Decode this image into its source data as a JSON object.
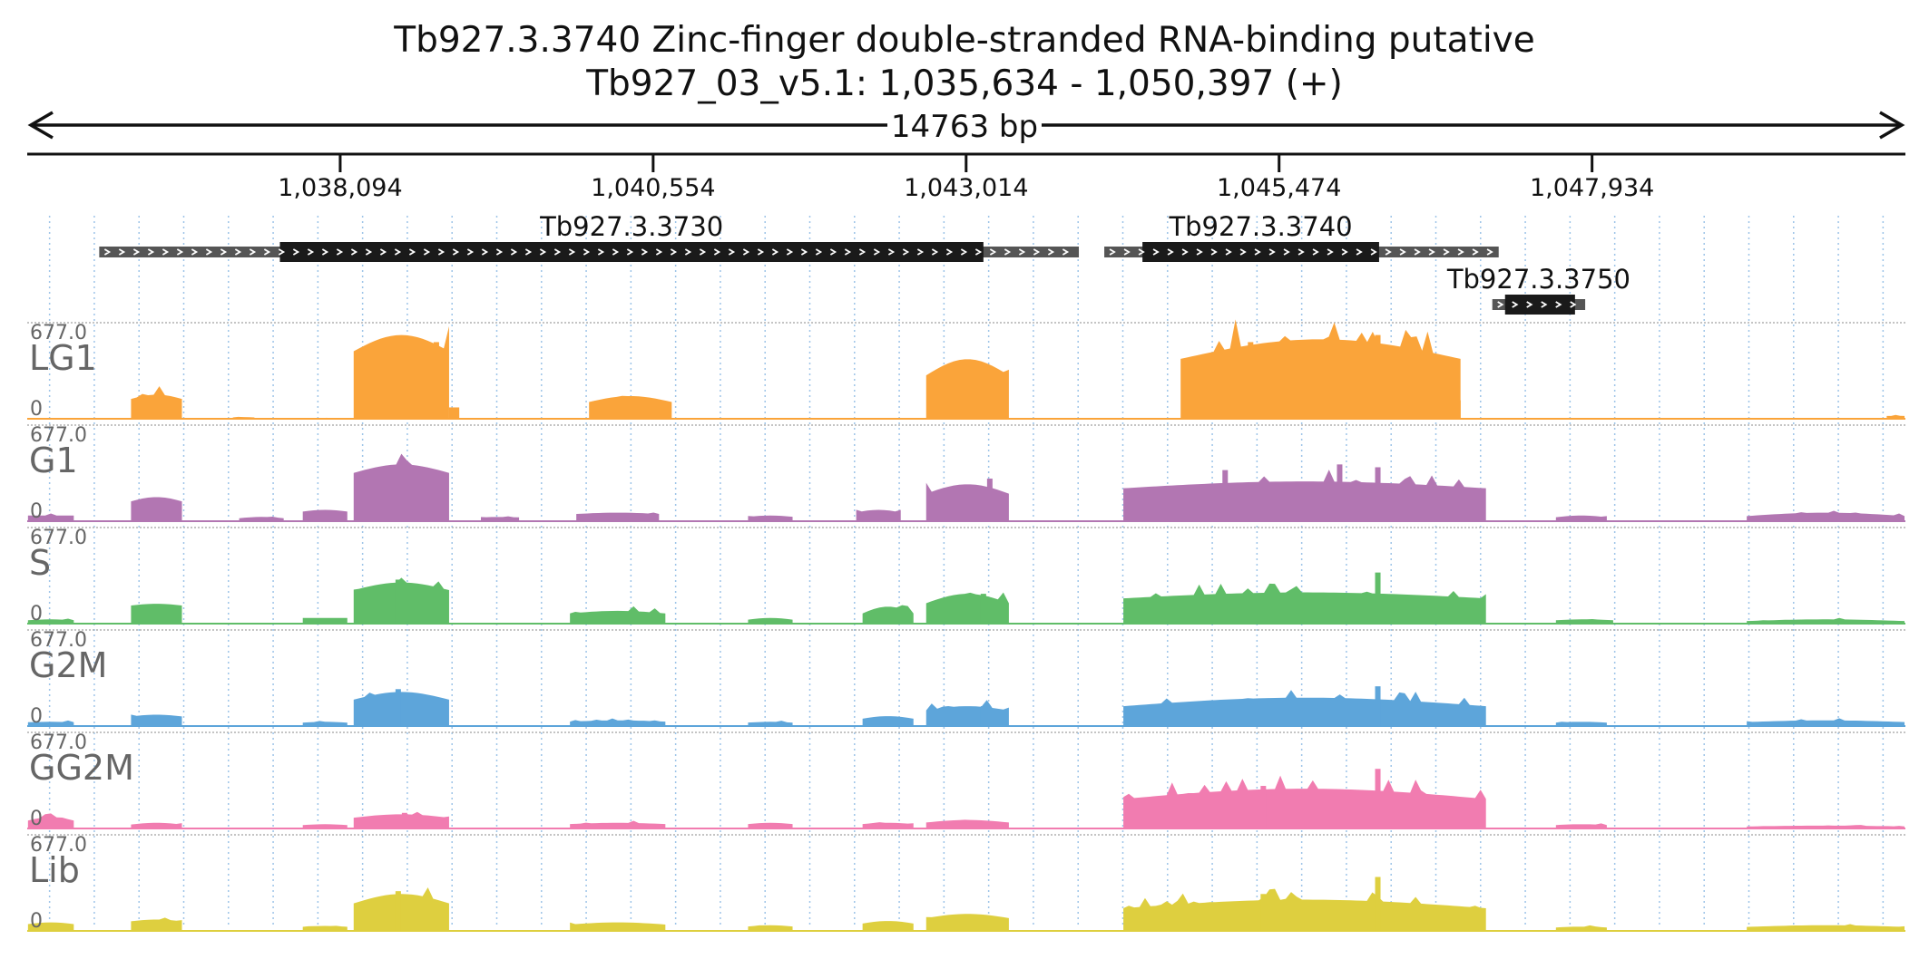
{
  "header": {
    "title": "Tb927.3.3740  Zinc-finger double-stranded RNA-binding  putative",
    "subtitle": "Tb927_03_v5.1: 1,035,634 - 1,050,397 (+)",
    "span_label": "14763 bp"
  },
  "chart_data": {
    "type": "area",
    "title": "Tb927.3.3740  Zinc-finger double-stranded RNA-binding  putative",
    "subtitle": "Tb927_03_v5.1: 1,035,634 - 1,050,397 (+)",
    "chromosome": "Tb927_03_v5.1",
    "strand": "+",
    "xlim": [
      1035634,
      1050397
    ],
    "span_label": "14763 bp",
    "x_ticks": [
      {
        "value": 1038094,
        "label": "1,038,094"
      },
      {
        "value": 1040554,
        "label": "1,040,554"
      },
      {
        "value": 1043014,
        "label": "1,043,014"
      },
      {
        "value": 1045474,
        "label": "1,045,474"
      },
      {
        "value": 1047934,
        "label": "1,047,934"
      }
    ],
    "grid": true,
    "genes": [
      {
        "name": "Tb927.3.3730",
        "utr_start": 1036200,
        "cds_start": 1037620,
        "cds_end": 1043150,
        "utr_end": 1043900
      },
      {
        "name": "Tb927.3.3740",
        "utr_start": 1044100,
        "cds_start": 1044400,
        "cds_end": 1046260,
        "utr_end": 1047200
      },
      {
        "name": "Tb927.3.3750",
        "utr_start": 1047150,
        "cds_start": 1047250,
        "cds_end": 1047800,
        "utr_end": 1047880
      }
    ],
    "ylim": [
      0,
      677.0
    ],
    "y_max_label": "677.0",
    "y_min_label": "0",
    "series": [
      {
        "name": "LG1",
        "color": "#faa43a",
        "regions": [
          [
            1036450,
            1036850,
            120,
            170
          ],
          [
            1037250,
            1037420,
            8,
            12
          ],
          [
            1037950,
            1038000,
            5,
            5
          ],
          [
            1038200,
            1038950,
            400,
            590
          ],
          [
            1038950,
            1039030,
            80,
            80
          ],
          [
            1040050,
            1040700,
            90,
            160
          ],
          [
            1042700,
            1043350,
            230,
            420
          ],
          [
            1044700,
            1046900,
            330,
            560
          ],
          [
            1050250,
            1050390,
            20,
            20
          ]
        ],
        "peaks": [
          [
            1038600,
            560
          ],
          [
            1038850,
            540
          ],
          [
            1043150,
            370
          ],
          [
            1045250,
            540
          ],
          [
            1046250,
            590
          ],
          [
            1046550,
            520
          ],
          [
            1046880,
            130
          ]
        ]
      },
      {
        "name": "G1",
        "color": "#b276b2",
        "regions": [
          [
            1035640,
            1036000,
            40,
            40
          ],
          [
            1036450,
            1036850,
            120,
            170
          ],
          [
            1037300,
            1037650,
            15,
            30
          ],
          [
            1037800,
            1038150,
            60,
            80
          ],
          [
            1038200,
            1038950,
            300,
            400
          ],
          [
            1039200,
            1039500,
            25,
            30
          ],
          [
            1039950,
            1040600,
            45,
            60
          ],
          [
            1041300,
            1041650,
            25,
            40
          ],
          [
            1042150,
            1042500,
            50,
            80
          ],
          [
            1042700,
            1043350,
            150,
            260
          ],
          [
            1044250,
            1047100,
            200,
            280
          ],
          [
            1047650,
            1048050,
            20,
            40
          ],
          [
            1049150,
            1050390,
            20,
            60
          ]
        ],
        "peaks": [
          [
            1038500,
            390
          ],
          [
            1038700,
            350
          ],
          [
            1043200,
            300
          ],
          [
            1045050,
            360
          ],
          [
            1045950,
            400
          ],
          [
            1046250,
            380
          ]
        ]
      },
      {
        "name": "S",
        "color": "#60bd68",
        "regions": [
          [
            1035640,
            1036000,
            20,
            30
          ],
          [
            1036450,
            1036850,
            120,
            140
          ],
          [
            1037800,
            1038150,
            40,
            40
          ],
          [
            1038200,
            1038950,
            200,
            290
          ],
          [
            1039900,
            1040650,
            60,
            90
          ],
          [
            1041300,
            1041650,
            20,
            40
          ],
          [
            1042200,
            1042600,
            40,
            120
          ],
          [
            1042700,
            1043350,
            100,
            210
          ],
          [
            1044250,
            1047100,
            150,
            220
          ],
          [
            1047650,
            1048100,
            20,
            30
          ],
          [
            1049150,
            1050390,
            10,
            30
          ]
        ],
        "peaks": [
          [
            1038550,
            310
          ],
          [
            1043150,
            210
          ],
          [
            1046250,
            360
          ]
        ]
      },
      {
        "name": "G2M",
        "color": "#5da5da",
        "regions": [
          [
            1035640,
            1036000,
            25,
            30
          ],
          [
            1036450,
            1036850,
            60,
            80
          ],
          [
            1037800,
            1038150,
            20,
            30
          ],
          [
            1038200,
            1038950,
            150,
            240
          ],
          [
            1039900,
            1040650,
            25,
            40
          ],
          [
            1041300,
            1041650,
            20,
            30
          ],
          [
            1042200,
            1042600,
            40,
            70
          ],
          [
            1042700,
            1043350,
            90,
            140
          ],
          [
            1044250,
            1047100,
            100,
            200
          ],
          [
            1047650,
            1048050,
            20,
            30
          ],
          [
            1049150,
            1050390,
            20,
            40
          ]
        ],
        "peaks": [
          [
            1038550,
            260
          ],
          [
            1043150,
            140
          ],
          [
            1046250,
            280
          ]
        ]
      },
      {
        "name": "GG2M",
        "color": "#f17cb0",
        "regions": [
          [
            1035640,
            1036000,
            40,
            80
          ],
          [
            1036450,
            1036850,
            20,
            40
          ],
          [
            1037800,
            1038150,
            20,
            30
          ],
          [
            1038200,
            1038950,
            60,
            100
          ],
          [
            1039900,
            1040650,
            25,
            40
          ],
          [
            1041300,
            1041650,
            25,
            40
          ],
          [
            1042200,
            1042600,
            25,
            40
          ],
          [
            1042700,
            1043350,
            30,
            60
          ],
          [
            1044250,
            1047100,
            160,
            280
          ],
          [
            1047650,
            1048050,
            20,
            30
          ],
          [
            1049150,
            1050390,
            10,
            20
          ]
        ],
        "peaks": [
          [
            1038600,
            110
          ],
          [
            1045350,
            300
          ],
          [
            1046250,
            420
          ]
        ]
      },
      {
        "name": "Lib",
        "color": "#decf3f",
        "regions": [
          [
            1035640,
            1036000,
            40,
            60
          ],
          [
            1036450,
            1036850,
            60,
            80
          ],
          [
            1037800,
            1038150,
            25,
            35
          ],
          [
            1038200,
            1038950,
            150,
            260
          ],
          [
            1039900,
            1040650,
            35,
            60
          ],
          [
            1041300,
            1041650,
            25,
            40
          ],
          [
            1042200,
            1042600,
            40,
            70
          ],
          [
            1042700,
            1043350,
            70,
            120
          ],
          [
            1044250,
            1047100,
            120,
            220
          ],
          [
            1047650,
            1048050,
            20,
            30
          ],
          [
            1049150,
            1050390,
            20,
            40
          ]
        ],
        "peaks": [
          [
            1038550,
            280
          ],
          [
            1045350,
            260
          ],
          [
            1046250,
            380
          ]
        ]
      }
    ]
  }
}
